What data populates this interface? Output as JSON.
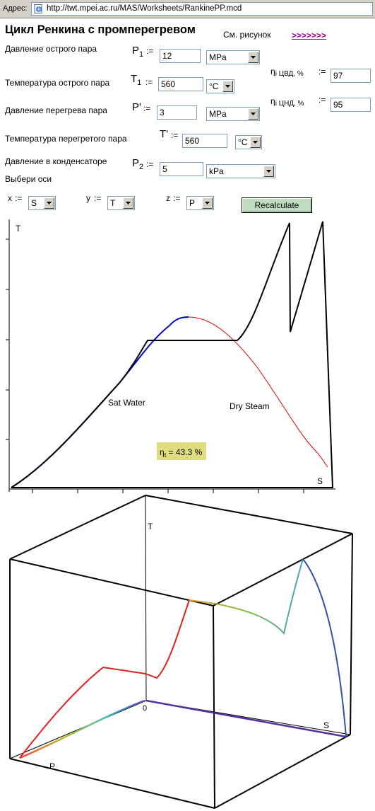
{
  "browser": {
    "address_label": "Адрес:",
    "url": "http://twt.mpei.ac.ru/MAS/Worksheets/RankinePP.mcd"
  },
  "worksheet": {
    "title": "Цикл Ренкина с промперегревом",
    "see_figure": "См. рисунок",
    "link": ">>>>>>>",
    "fields": {
      "p1": {
        "label": "Давление острого пара",
        "symbol": "P",
        "sub": "1",
        "value": "12",
        "unit": "MPa"
      },
      "t1": {
        "label": "Температура острого пара",
        "symbol": "T",
        "sub": "1",
        "value": "560",
        "unit": "°C"
      },
      "pr": {
        "label": "Давление перегрева пара",
        "symbol": "P'",
        "value": "3",
        "unit": "MPa"
      },
      "tr": {
        "label": "Температура перегретого пара",
        "symbol": "T'",
        "value": "560",
        "unit": "°C"
      },
      "p2": {
        "label": "Давление в конденсаторе",
        "symbol": "P",
        "sub": "2",
        "value": "5",
        "unit": "kPa"
      }
    },
    "eff_hp": {
      "label": "i ЦВД, %",
      "value": "97"
    },
    "eff_lp": {
      "label": "i ЦНД, %",
      "value": "95"
    },
    "assign": ":=",
    "axes": {
      "prompt": "Выбери оси",
      "x": {
        "label": "x",
        "value": "S"
      },
      "y": {
        "label": "y",
        "value": "T"
      },
      "z": {
        "label": "z",
        "value": "P"
      }
    },
    "recalculate": "Recalculate"
  },
  "plot2d": {
    "y_axis": "T",
    "x_axis": "S",
    "sat_water": "Sat Water",
    "dry_steam": "Dry Steam",
    "efficiency": {
      "symbol": "η",
      "sub": "t",
      "text": " = 43.3 %",
      "value": 43.3,
      "bg_color": "#dede80"
    },
    "colors": {
      "saturation_liquid": "#0000cc",
      "saturation_vapor": "#dd0000",
      "cycle": "#000000"
    }
  },
  "plot3d": {
    "axis_t": "T",
    "axis_s": "S",
    "axis_p": "P",
    "origin": "0"
  }
}
